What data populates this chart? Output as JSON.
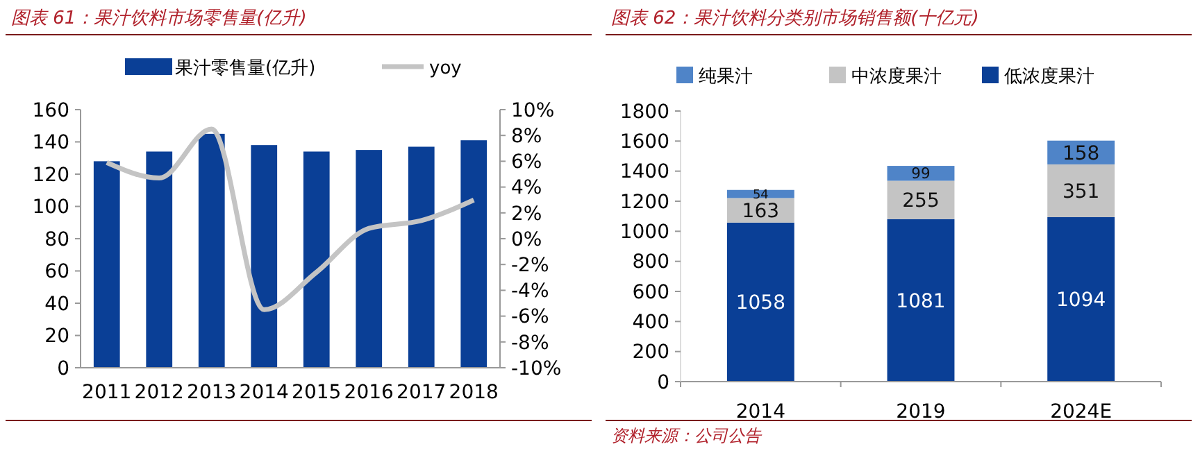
{
  "chart_data": [
    {
      "type": "bar",
      "title": "图表 61：果汁饮料市场零售量(亿升)",
      "categories": [
        "2011",
        "2012",
        "2013",
        "2014",
        "2015",
        "2016",
        "2017",
        "2018"
      ],
      "series": [
        {
          "name": "果汁零售量(亿升)",
          "color": "#0a3f96",
          "values": [
            128,
            134,
            145,
            138,
            134,
            135,
            137,
            141
          ]
        },
        {
          "name": "yoy",
          "type": "line",
          "axis": "y2",
          "color": "#c4c4c4",
          "values": [
            5.9,
            4.7,
            8.5,
            -5.5,
            -2.6,
            0.8,
            1.4,
            3.0
          ]
        }
      ],
      "ylim": [
        0,
        160
      ],
      "yticks": [
        0,
        20,
        40,
        60,
        80,
        100,
        120,
        140,
        160
      ],
      "y2lim": [
        -10,
        10
      ],
      "y2ticks": [
        {
          "value": -10,
          "label": "-10%"
        },
        {
          "value": -8,
          "label": "-8%"
        },
        {
          "value": -6,
          "label": "-6%"
        },
        {
          "value": -4,
          "label": "-4%"
        },
        {
          "value": -2,
          "label": "-2%"
        },
        {
          "value": 0,
          "label": "0%"
        },
        {
          "value": 2,
          "label": "2%"
        },
        {
          "value": 4,
          "label": "4%"
        },
        {
          "value": 6,
          "label": "6%"
        },
        {
          "value": 8,
          "label": "8%"
        },
        {
          "value": 10,
          "label": "10%"
        }
      ],
      "legend": "top",
      "grid": false
    },
    {
      "type": "bar",
      "title": "图表 62：果汁饮料分类别市场销售额(十亿元)",
      "categories": [
        "2014",
        "2019",
        "2024E"
      ],
      "stacked": true,
      "data_labels": true,
      "series": [
        {
          "name": "低浓度果汁",
          "color": "#0a3f96",
          "values": [
            1058,
            1081,
            1094
          ]
        },
        {
          "name": "中浓度果汁",
          "color": "#c4c4c4",
          "values": [
            163,
            255,
            351
          ]
        },
        {
          "name": "纯果汁",
          "color": "#4f84c8",
          "values": [
            54,
            99,
            158
          ]
        }
      ],
      "ylim": [
        0,
        1800
      ],
      "yticks": [
        0,
        200,
        400,
        600,
        800,
        1000,
        1200,
        1400,
        1600,
        1800
      ],
      "legend": "top",
      "grid": false,
      "annotations": [
        "资料来源：公司公告"
      ]
    }
  ]
}
